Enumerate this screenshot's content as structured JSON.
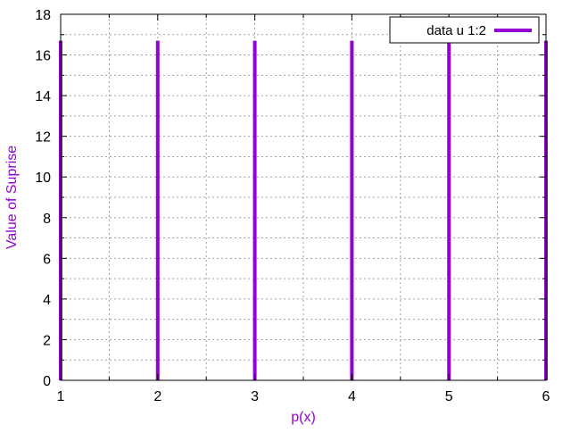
{
  "chart_data": {
    "type": "bar",
    "title": "",
    "xlabel": "p(x)",
    "ylabel": "Value of Suprise",
    "xlim": [
      1,
      6
    ],
    "ylim": [
      0,
      18
    ],
    "x_ticks": [
      "1",
      "2",
      "3",
      "4",
      "5",
      "6"
    ],
    "y_ticks": [
      "0",
      "2",
      "4",
      "6",
      "8",
      "10",
      "12",
      "14",
      "16",
      "18"
    ],
    "grid": true,
    "legend_position": "top-right",
    "series": [
      {
        "name": "data u 1:2",
        "color": "#9400d3",
        "style": "impulses",
        "x": [
          1,
          2,
          3,
          4,
          5,
          6
        ],
        "y": [
          16.7,
          16.7,
          16.7,
          16.7,
          16.7,
          16.7
        ]
      }
    ]
  },
  "colors": {
    "series": "#9400d3",
    "axis_title": "#9400d3",
    "grid": "#a0a0a0",
    "frame": "#000000"
  }
}
